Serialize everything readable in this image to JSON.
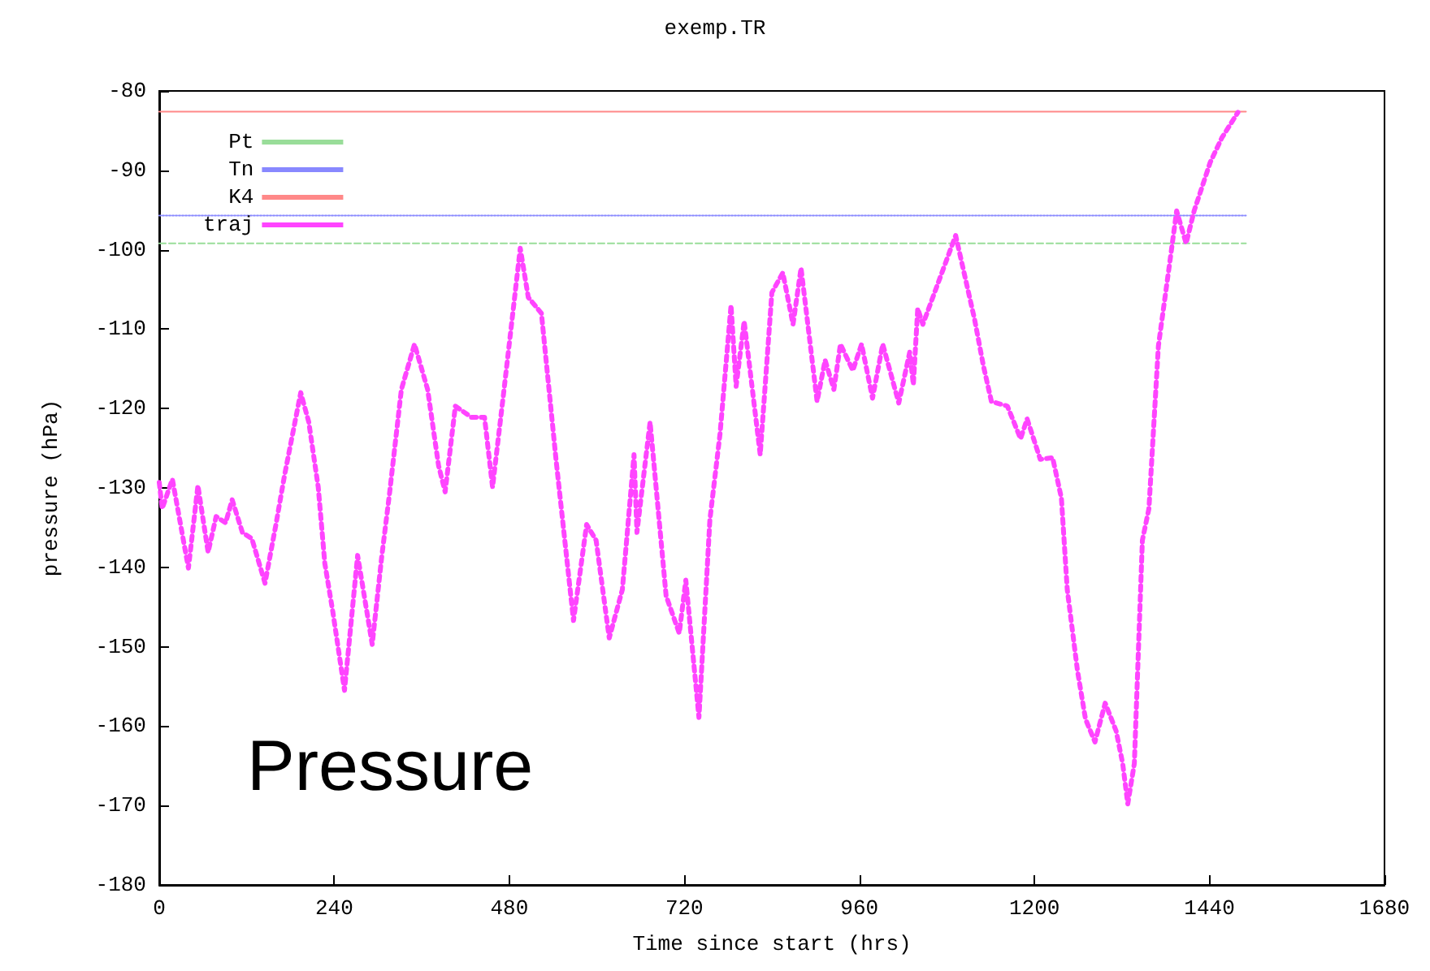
{
  "chart_data": {
    "type": "line",
    "title": "exemp.TR",
    "xlabel": "Time since start (hrs)",
    "ylabel": "pressure (hPa)",
    "annotations": [
      "Pressure"
    ],
    "xlim": [
      0,
      1680
    ],
    "xticks": [
      0,
      240,
      480,
      720,
      960,
      1200,
      1440,
      1680
    ],
    "ylim": [
      -180,
      -80
    ],
    "yticks": [
      -180,
      -170,
      -160,
      -150,
      -140,
      -130,
      -120,
      -110,
      -100,
      -90,
      -80
    ],
    "grid": false,
    "legend": "top left",
    "marker": "none",
    "series": [
      {
        "name": "Pt",
        "color": "#99dd99",
        "line_style": "dashed",
        "x": [
          0,
          1490
        ],
        "values": [
          -99.2,
          -99.2
        ]
      },
      {
        "name": "Tn",
        "color": "#8888ff",
        "line_style": "dotted",
        "x": [
          0,
          1490
        ],
        "values": [
          -95.7,
          -95.7
        ]
      },
      {
        "name": "K4",
        "color": "#ff8888",
        "line_style": "solid",
        "x": [
          0,
          1490
        ],
        "values": [
          -82.6,
          -82.6
        ]
      },
      {
        "name": "traj",
        "color": "#ff44ff",
        "line_style": "dotted",
        "x": [
          0,
          4,
          18,
          40,
          53,
          67,
          78,
          91,
          100,
          114,
          127,
          145,
          160,
          172,
          194,
          205,
          218,
          227,
          238,
          254,
          272,
          292,
          305,
          316,
          332,
          350,
          368,
          383,
          392,
          406,
          428,
          446,
          457,
          472,
          495,
          506,
          524,
          544,
          568,
          586,
          599,
          617,
          635,
          651,
          655,
          673,
          695,
          713,
          722,
          740,
          755,
          769,
          784,
          791,
          802,
          824,
          840,
          855,
          869,
          880,
          902,
          913,
          925,
          934,
          951,
          963,
          978,
          992,
          1014,
          1029,
          1034,
          1040,
          1047,
          1092,
          1118,
          1130,
          1141,
          1163,
          1181,
          1190,
          1208,
          1225,
          1237,
          1245,
          1259,
          1270,
          1283,
          1297,
          1312,
          1321,
          1328,
          1337,
          1348,
          1357,
          1370,
          1386,
          1395,
          1408,
          1419,
          1441,
          1457,
          1479
        ],
        "values": [
          -129.3,
          -132.6,
          -128.9,
          -140.1,
          -129.7,
          -138.1,
          -133.6,
          -134.4,
          -131.5,
          -135.6,
          -136.4,
          -142.0,
          -134.6,
          -128.3,
          -118.0,
          -121.7,
          -129.9,
          -139.5,
          -145.6,
          -155.5,
          -138.5,
          -149.7,
          -138.7,
          -130.5,
          -117.6,
          -111.9,
          -117.6,
          -127.2,
          -130.5,
          -119.7,
          -121.1,
          -121.1,
          -129.9,
          -118.2,
          -99.8,
          -106.0,
          -108.0,
          -126.4,
          -146.7,
          -134.6,
          -136.6,
          -148.9,
          -142.8,
          -125.8,
          -135.6,
          -121.7,
          -143.6,
          -148.3,
          -141.6,
          -158.9,
          -134.0,
          -123.1,
          -107.0,
          -117.2,
          -109.0,
          -125.8,
          -105.4,
          -102.9,
          -109.4,
          -102.3,
          -119.1,
          -113.9,
          -117.6,
          -111.9,
          -115.2,
          -111.9,
          -118.7,
          -111.9,
          -119.3,
          -112.9,
          -117.0,
          -107.4,
          -109.4,
          -98.2,
          -108.8,
          -114.6,
          -119.1,
          -119.7,
          -123.8,
          -121.3,
          -126.4,
          -126.2,
          -131.3,
          -142.8,
          -153.0,
          -159.1,
          -162.0,
          -157.1,
          -160.6,
          -164.7,
          -169.8,
          -164.7,
          -136.6,
          -132.6,
          -112.1,
          -101.3,
          -95.1,
          -99.2,
          -95.1,
          -89.0,
          -85.9,
          -82.7
        ]
      }
    ]
  }
}
